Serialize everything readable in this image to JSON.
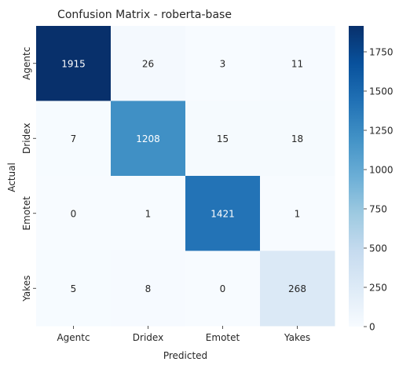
{
  "chart_data": {
    "type": "heatmap",
    "title": "Confusion Matrix - roberta-base",
    "xlabel": "Predicted",
    "ylabel": "Actual",
    "x_categories": [
      "Agentc",
      "Dridex",
      "Emotet",
      "Yakes"
    ],
    "y_categories": [
      "Agentc",
      "Dridex",
      "Emotet",
      "Yakes"
    ],
    "values": [
      [
        1915,
        26,
        3,
        11
      ],
      [
        7,
        1208,
        15,
        18
      ],
      [
        0,
        1,
        1421,
        1
      ],
      [
        5,
        8,
        0,
        268
      ]
    ],
    "colorbar": {
      "min": 0,
      "max": 1915,
      "ticks": [
        0,
        250,
        500,
        750,
        1000,
        1250,
        1500,
        1750
      ],
      "colormap": "Blues"
    }
  }
}
